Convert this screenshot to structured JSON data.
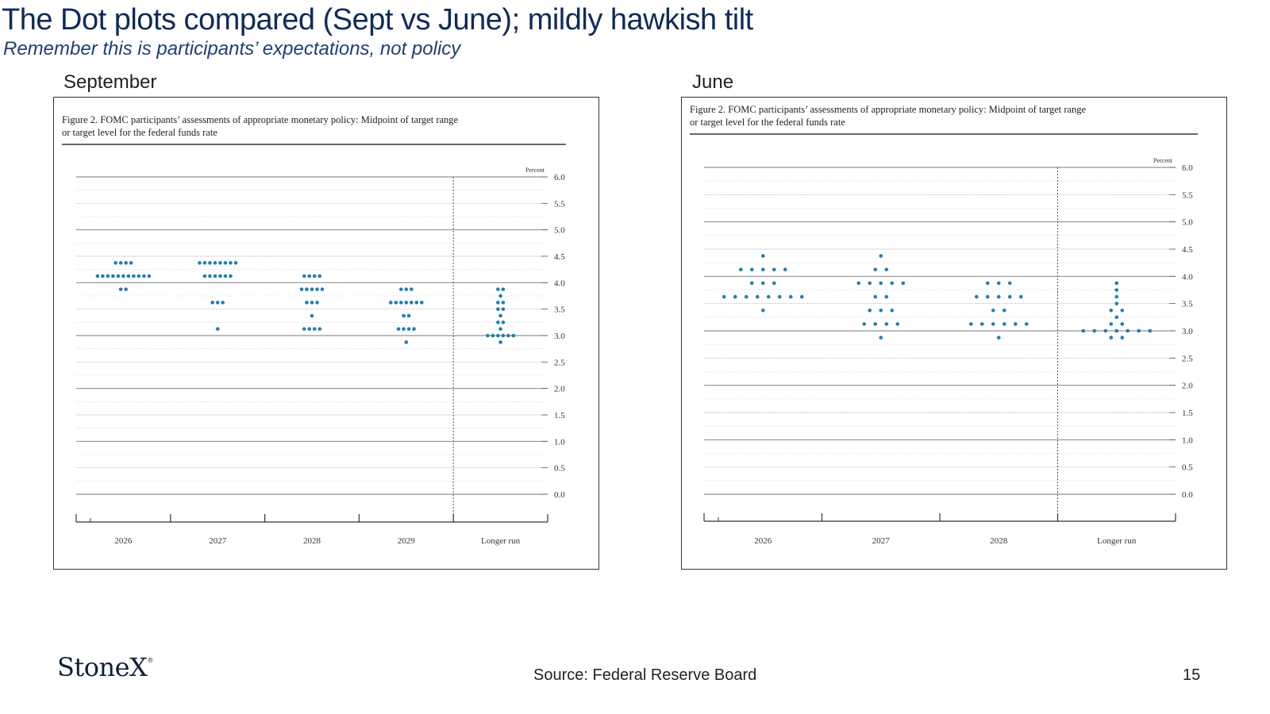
{
  "slide": {
    "title": "The Dot plots compared (Sept vs June); mildly hawkish tilt",
    "subtitle": "Remember this is participants’ expectations, not policy",
    "logo_text": "StoneX",
    "logo_mark": "®",
    "source": "Source: Federal Reserve Board",
    "page_number": "15"
  },
  "colors": {
    "dot": "#1f7fb5",
    "title": "#0f2a5c",
    "subtitle": "#1f3d7a"
  },
  "chart_data": [
    {
      "type": "scatter",
      "panel_label": "September",
      "caption_line1": "Figure 2. FOMC participants’ assessments of appropriate monetary policy: Midpoint of target range",
      "caption_line2": "or target level for the federal funds rate",
      "unit_label": "Percent",
      "ylim": [
        0,
        6
      ],
      "yticks": [
        "0.0",
        "0.5",
        "1.0",
        "1.5",
        "2.0",
        "2.5",
        "3.0",
        "3.5",
        "4.0",
        "4.5",
        "5.0",
        "5.5",
        "6.0"
      ],
      "categories": [
        "2026",
        "2027",
        "2028",
        "2029",
        "Longer run"
      ],
      "dots": [
        [
          {
            "y": 4.375,
            "n": 4
          },
          {
            "y": 4.125,
            "n": 11
          },
          {
            "y": 3.875,
            "n": 2
          }
        ],
        [
          {
            "y": 4.375,
            "n": 8
          },
          {
            "y": 4.125,
            "n": 6
          },
          {
            "y": 3.625,
            "n": 3
          },
          {
            "y": 3.125,
            "n": 1
          }
        ],
        [
          {
            "y": 4.125,
            "n": 4
          },
          {
            "y": 3.875,
            "n": 5
          },
          {
            "y": 3.625,
            "n": 3
          },
          {
            "y": 3.375,
            "n": 1
          },
          {
            "y": 3.125,
            "n": 4
          }
        ],
        [
          {
            "y": 3.875,
            "n": 3
          },
          {
            "y": 3.625,
            "n": 7
          },
          {
            "y": 3.375,
            "n": 2
          },
          {
            "y": 3.125,
            "n": 4
          },
          {
            "y": 2.875,
            "n": 1
          }
        ],
        [
          {
            "y": 3.875,
            "n": 2
          },
          {
            "y": 3.75,
            "n": 1
          },
          {
            "y": 3.625,
            "n": 2
          },
          {
            "y": 3.5,
            "n": 2
          },
          {
            "y": 3.375,
            "n": 1
          },
          {
            "y": 3.25,
            "n": 2
          },
          {
            "y": 3.125,
            "n": 1
          },
          {
            "y": 3.0,
            "n": 6
          },
          {
            "y": 2.875,
            "n": 1
          }
        ]
      ]
    },
    {
      "type": "scatter",
      "panel_label": "June",
      "caption_line1": "Figure 2. FOMC participants’ assessments of appropriate monetary policy: Midpoint of target range",
      "caption_line2": "or target level for the federal funds rate",
      "unit_label": "Percent",
      "ylim": [
        0,
        6
      ],
      "yticks": [
        "0.0",
        "0.5",
        "1.0",
        "1.5",
        "2.0",
        "2.5",
        "3.0",
        "3.5",
        "4.0",
        "4.5",
        "5.0",
        "5.5",
        "6.0"
      ],
      "categories": [
        "2026",
        "2027",
        "2028",
        "Longer run"
      ],
      "dots": [
        [
          {
            "y": 4.375,
            "n": 1
          },
          {
            "y": 4.125,
            "n": 5
          },
          {
            "y": 3.875,
            "n": 3
          },
          {
            "y": 3.625,
            "n": 8
          },
          {
            "y": 3.375,
            "n": 1
          }
        ],
        [
          {
            "y": 4.375,
            "n": 1
          },
          {
            "y": 4.125,
            "n": 2
          },
          {
            "y": 3.875,
            "n": 5
          },
          {
            "y": 3.625,
            "n": 2
          },
          {
            "y": 3.375,
            "n": 3
          },
          {
            "y": 3.125,
            "n": 4
          },
          {
            "y": 2.875,
            "n": 1
          }
        ],
        [
          {
            "y": 3.875,
            "n": 3
          },
          {
            "y": 3.625,
            "n": 5
          },
          {
            "y": 3.375,
            "n": 2
          },
          {
            "y": 3.125,
            "n": 6
          },
          {
            "y": 2.875,
            "n": 1
          }
        ],
        [
          {
            "y": 3.875,
            "n": 1
          },
          {
            "y": 3.75,
            "n": 1
          },
          {
            "y": 3.625,
            "n": 1
          },
          {
            "y": 3.5,
            "n": 1
          },
          {
            "y": 3.375,
            "n": 2
          },
          {
            "y": 3.25,
            "n": 1
          },
          {
            "y": 3.125,
            "n": 2
          },
          {
            "y": 3.0,
            "n": 7
          },
          {
            "y": 2.875,
            "n": 2
          }
        ]
      ]
    }
  ]
}
